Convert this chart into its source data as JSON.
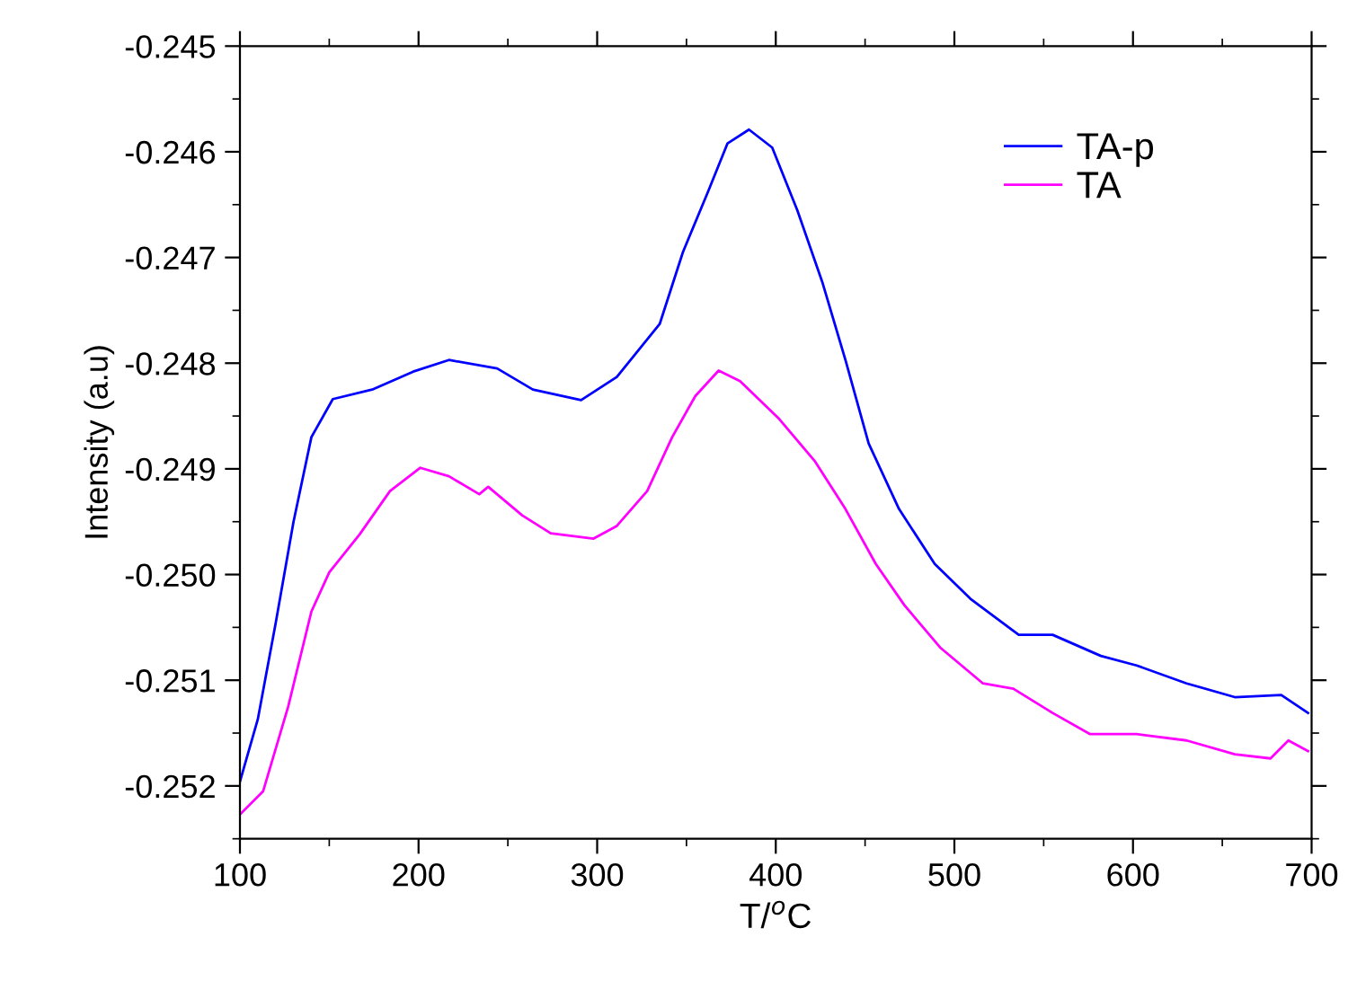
{
  "chart_data": {
    "type": "line",
    "xlabel": "T/$^{o}$C",
    "ylabel": "Intensity (a.u)",
    "xlim": [
      100,
      700
    ],
    "xticks": [
      100,
      200,
      300,
      400,
      500,
      600,
      700
    ],
    "ylim": [
      -0.2525,
      -0.245
    ],
    "yticks": [
      -0.252,
      -0.251,
      {
        "value": -0.25,
        "label": "-0.250"
      },
      -0.249,
      -0.248,
      -0.247,
      -0.246,
      -0.245
    ],
    "legend": "top right",
    "grid": false,
    "line_style": "solid",
    "marker": "none",
    "series": [
      {
        "name": "TA-p",
        "color": "#0000ff",
        "x": [
          100,
          110,
          120,
          130,
          140,
          152,
          174,
          197,
          217,
          244,
          264,
          291,
          311,
          335,
          348,
          362,
          373,
          385,
          398,
          412,
          426,
          439,
          452,
          469,
          489,
          509,
          536,
          555,
          582,
          602,
          630,
          657,
          683,
          698
        ],
        "values": [
          -0.25196,
          -0.25137,
          -0.25046,
          -0.2495,
          -0.2487,
          -0.24834,
          -0.24825,
          -0.24808,
          -0.24797,
          -0.24805,
          -0.24825,
          -0.24835,
          -0.24813,
          -0.24763,
          -0.24695,
          -0.24638,
          -0.24592,
          -0.24579,
          -0.24596,
          -0.24655,
          -0.24723,
          -0.24797,
          -0.24876,
          -0.24938,
          -0.2499,
          -0.25023,
          -0.25057,
          -0.25057,
          -0.25077,
          -0.25086,
          -0.25103,
          -0.25116,
          -0.25114,
          -0.25131
        ]
      },
      {
        "name": "TA",
        "color": "#ff00ff",
        "x": [
          100,
          113,
          127,
          140,
          150,
          167,
          184,
          201,
          217,
          234,
          239,
          258,
          274,
          298,
          311,
          328,
          342,
          355,
          368,
          380,
          402,
          422,
          439,
          456,
          472,
          492,
          516,
          533,
          555,
          576,
          602,
          630,
          657,
          677,
          687,
          698
        ],
        "values": [
          -0.25227,
          -0.25205,
          -0.25125,
          -0.25035,
          -0.24998,
          -0.24962,
          -0.24921,
          -0.24899,
          -0.24907,
          -0.24924,
          -0.24917,
          -0.24944,
          -0.24961,
          -0.24966,
          -0.24954,
          -0.24921,
          -0.2487,
          -0.24831,
          -0.24807,
          -0.24817,
          -0.24853,
          -0.24893,
          -0.24938,
          -0.2499,
          -0.25029,
          -0.25069,
          -0.25103,
          -0.25108,
          -0.25131,
          -0.25151,
          -0.25151,
          -0.25157,
          -0.2517,
          -0.25174,
          -0.25157,
          -0.25167
        ]
      }
    ]
  }
}
